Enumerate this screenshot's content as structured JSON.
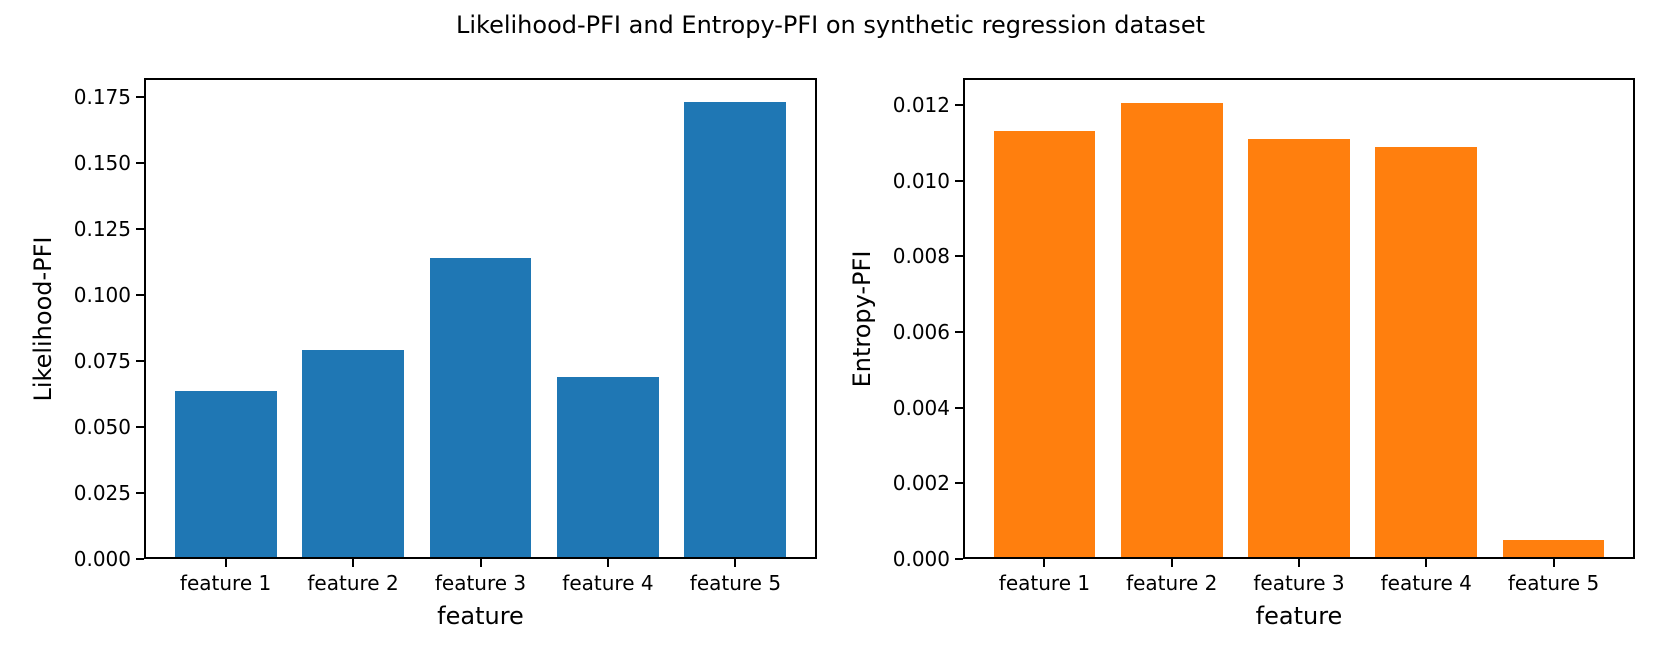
{
  "figure": {
    "title": "Likelihood-PFI and Entropy-PFI on synthetic regression dataset",
    "background": "#ffffff",
    "text_color": "#000000"
  },
  "chart_data": [
    {
      "id": "likelihood-pfi",
      "type": "bar",
      "title": "",
      "xlabel": "feature",
      "ylabel": "Likelihood-PFI",
      "categories": [
        "feature 1",
        "feature 2",
        "feature 3",
        "feature 4",
        "feature 5"
      ],
      "values": [
        0.0637,
        0.0791,
        0.1139,
        0.069,
        0.1732
      ],
      "bar_color": "#1f77b4",
      "ylim": [
        0,
        0.1823
      ],
      "yticks": [
        0,
        0.025,
        0.05,
        0.075,
        0.1,
        0.125,
        0.15,
        0.175
      ],
      "ytick_labels": [
        "0.000",
        "0.025",
        "0.050",
        "0.075",
        "0.100",
        "0.125",
        "0.150",
        "0.175"
      ],
      "grid": false,
      "legend": "none"
    },
    {
      "id": "entropy-pfi",
      "type": "bar",
      "title": "",
      "xlabel": "feature",
      "ylabel": "Entropy-PFI",
      "categories": [
        "feature 1",
        "feature 2",
        "feature 3",
        "feature 4",
        "feature 5"
      ],
      "values": [
        0.0113,
        0.01205,
        0.0111,
        0.0109,
        0.0005
      ],
      "bar_color": "#ff7f0e",
      "ylim": [
        0,
        0.01271
      ],
      "yticks": [
        0,
        0.002,
        0.004,
        0.006,
        0.008,
        0.01,
        0.012
      ],
      "ytick_labels": [
        "0.000",
        "0.002",
        "0.004",
        "0.006",
        "0.008",
        "0.010",
        "0.012"
      ],
      "grid": false,
      "legend": "none"
    }
  ]
}
